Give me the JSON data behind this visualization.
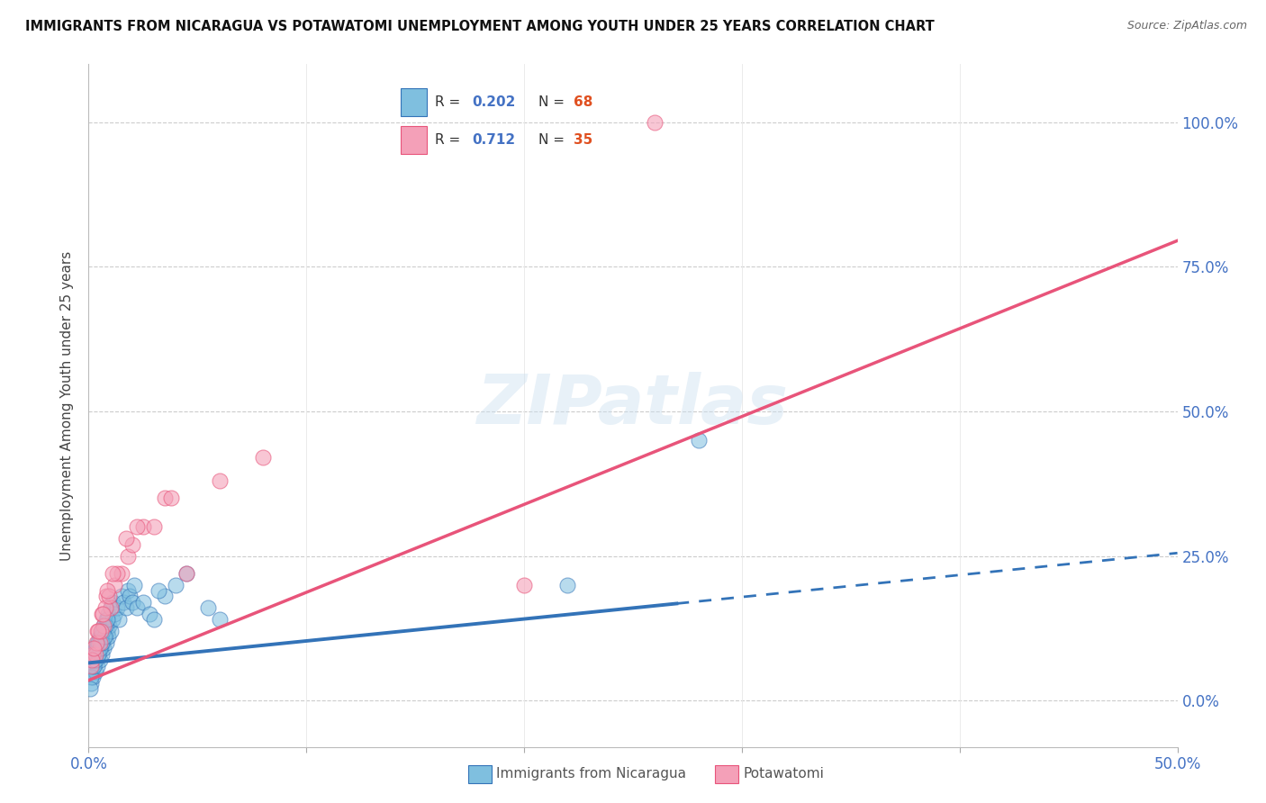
{
  "title": "IMMIGRANTS FROM NICARAGUA VS POTAWATOMI UNEMPLOYMENT AMONG YOUTH UNDER 25 YEARS CORRELATION CHART",
  "source": "Source: ZipAtlas.com",
  "ylabel": "Unemployment Among Youth under 25 years",
  "ytick_labels": [
    "0.0%",
    "25.0%",
    "50.0%",
    "75.0%",
    "100.0%"
  ],
  "ytick_values": [
    0,
    25,
    50,
    75,
    100
  ],
  "xlim": [
    0,
    50
  ],
  "ylim": [
    -8,
    110
  ],
  "legend_label1": "Immigrants from Nicaragua",
  "legend_label2": "Potawatomi",
  "blue_color": "#7fbfdf",
  "pink_color": "#f4a0b8",
  "blue_line_color": "#3373b8",
  "pink_line_color": "#e8547a",
  "blue_scatter_x": [
    0.1,
    0.15,
    0.2,
    0.2,
    0.25,
    0.3,
    0.3,
    0.35,
    0.4,
    0.4,
    0.45,
    0.5,
    0.5,
    0.55,
    0.6,
    0.6,
    0.65,
    0.7,
    0.7,
    0.75,
    0.8,
    0.8,
    0.85,
    0.9,
    0.9,
    0.95,
    1.0,
    1.0,
    1.1,
    1.1,
    1.2,
    1.3,
    1.4,
    1.5,
    1.6,
    1.7,
    1.8,
    1.9,
    2.0,
    2.1,
    2.2,
    2.5,
    2.8,
    3.0,
    3.5,
    4.0,
    0.15,
    0.25,
    0.35,
    0.45,
    0.55,
    0.65,
    0.75,
    0.85,
    0.12,
    0.22,
    0.32,
    0.42,
    0.52,
    0.62,
    0.72,
    3.2,
    4.5,
    22.0,
    28.0,
    5.5,
    6.0,
    0.08
  ],
  "blue_scatter_y": [
    3,
    5,
    4,
    8,
    6,
    5,
    9,
    7,
    6,
    10,
    8,
    7,
    11,
    9,
    8,
    12,
    10,
    9,
    13,
    11,
    10,
    14,
    12,
    11,
    15,
    13,
    12,
    16,
    14,
    17,
    15,
    16,
    14,
    18,
    17,
    16,
    19,
    18,
    17,
    20,
    16,
    17,
    15,
    14,
    18,
    20,
    6,
    8,
    9,
    10,
    11,
    12,
    13,
    14,
    4,
    6,
    7,
    8,
    9,
    10,
    11,
    19,
    22,
    20,
    45,
    16,
    14,
    2
  ],
  "pink_scatter_x": [
    0.1,
    0.2,
    0.3,
    0.4,
    0.5,
    0.6,
    0.7,
    0.8,
    1.0,
    1.2,
    1.5,
    1.8,
    2.0,
    2.5,
    3.0,
    3.5,
    0.15,
    0.35,
    0.55,
    0.75,
    0.95,
    1.3,
    1.7,
    2.2,
    3.8,
    0.25,
    0.45,
    0.65,
    0.85,
    1.1,
    4.5,
    20.0,
    26.0,
    6.0,
    8.0
  ],
  "pink_scatter_y": [
    6,
    8,
    8,
    12,
    10,
    15,
    13,
    18,
    16,
    20,
    22,
    25,
    27,
    30,
    30,
    35,
    7,
    10,
    12,
    16,
    18,
    22,
    28,
    30,
    35,
    9,
    12,
    15,
    19,
    22,
    22,
    20,
    100,
    38,
    42
  ],
  "watermark": "ZIPatlas",
  "blue_R": 0.202,
  "blue_N": 68,
  "pink_R": 0.712,
  "pink_N": 35,
  "blue_slope": 0.38,
  "blue_intercept": 6.5,
  "blue_solid_end": 27.0,
  "pink_slope": 1.52,
  "pink_intercept": 3.5,
  "pink_line_start_x": 0.0,
  "pink_line_end_x": 50.0
}
